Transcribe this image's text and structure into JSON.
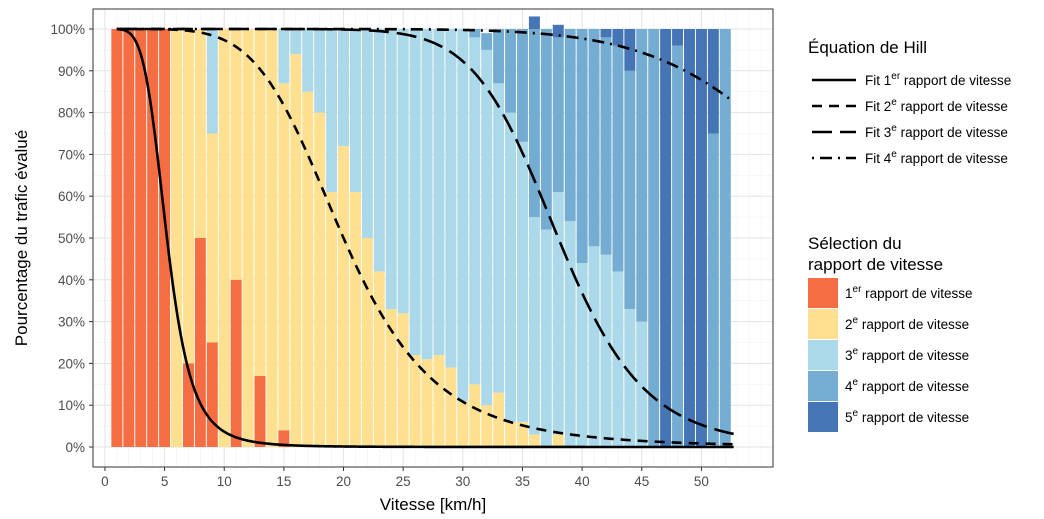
{
  "chart_data": {
    "type": "bar",
    "stacked": true,
    "xlabel": "Vitesse [km/h]",
    "ylabel": "Pourcentage du trafic évalué",
    "xlim": [
      -1,
      56
    ],
    "ylim": [
      0,
      100
    ],
    "x_ticks": [
      0,
      5,
      10,
      15,
      20,
      25,
      30,
      35,
      40,
      45,
      50
    ],
    "y_ticks": [
      "0%",
      "10%",
      "20%",
      "30%",
      "40%",
      "50%",
      "60%",
      "70%",
      "80%",
      "90%",
      "100%"
    ],
    "grid": true,
    "legend_position": "right",
    "colors": {
      "gear1": "#f46d43",
      "gear2": "#fee090",
      "gear3": "#abd9e9",
      "gear4": "#74add1",
      "gear5": "#4575b4"
    },
    "speeds": [
      1,
      2,
      3,
      4,
      5,
      6,
      7,
      8,
      9,
      10,
      11,
      12,
      13,
      14,
      15,
      16,
      17,
      18,
      19,
      20,
      21,
      22,
      23,
      24,
      25,
      26,
      27,
      28,
      29,
      30,
      31,
      32,
      33,
      34,
      35,
      36,
      37,
      38,
      39,
      40,
      41,
      42,
      43,
      44,
      45,
      46,
      47,
      48,
      49,
      50,
      51,
      52
    ],
    "series": [
      {
        "name": "1er rapport de vitesse",
        "key": "gear1",
        "values": [
          100,
          100,
          100,
          100,
          100,
          0,
          20,
          50,
          25,
          0,
          40,
          0,
          17,
          0,
          4,
          0,
          0,
          0,
          0,
          0,
          0,
          0,
          0,
          0,
          0,
          0,
          0,
          0,
          0,
          0,
          0,
          0,
          0,
          0,
          0,
          0,
          0,
          0,
          0,
          0,
          0,
          0,
          0,
          0,
          0,
          0,
          0,
          0,
          0,
          0,
          0,
          0
        ]
      },
      {
        "name": "2e rapport de vitesse",
        "key": "gear2",
        "values": [
          0,
          0,
          0,
          0,
          0,
          100,
          80,
          50,
          50,
          100,
          60,
          100,
          83,
          100,
          83,
          94,
          85,
          80,
          61,
          72,
          61,
          50,
          42,
          33,
          32,
          22,
          21,
          22,
          19,
          11,
          15,
          10,
          13,
          6,
          6,
          3,
          0,
          3,
          0,
          0,
          0,
          0,
          0,
          0,
          0,
          0,
          0,
          0,
          0,
          0,
          0,
          0
        ]
      },
      {
        "name": "3e rapport de vitesse",
        "key": "gear3",
        "values": [
          0,
          0,
          0,
          0,
          0,
          0,
          0,
          0,
          25,
          0,
          0,
          0,
          0,
          0,
          13,
          6,
          15,
          20,
          39,
          28,
          39,
          50,
          58,
          67,
          68,
          78,
          79,
          78,
          81,
          89,
          83,
          85,
          74,
          74,
          67,
          52,
          52,
          58,
          54,
          44,
          48,
          46,
          42,
          33,
          30,
          0,
          0,
          0,
          0,
          0,
          0,
          0
        ]
      },
      {
        "name": "4e rapport de vitesse",
        "key": "gear4",
        "values": [
          0,
          0,
          0,
          0,
          0,
          0,
          0,
          0,
          0,
          0,
          0,
          0,
          0,
          0,
          0,
          0,
          0,
          0,
          0,
          0,
          0,
          0,
          0,
          0,
          0,
          0,
          0,
          0,
          0,
          0,
          2,
          4,
          13,
          20,
          27,
          45,
          48,
          37,
          46,
          56,
          52,
          52,
          54,
          57,
          70,
          100,
          0,
          96,
          0,
          0,
          75,
          100
        ]
      },
      {
        "name": "5e rapport de vitesse",
        "key": "gear5",
        "values": [
          0,
          0,
          0,
          0,
          0,
          0,
          0,
          0,
          0,
          0,
          0,
          0,
          0,
          0,
          0,
          0,
          0,
          0,
          0,
          0,
          0,
          0,
          0,
          0,
          0,
          0,
          0,
          0,
          0,
          0,
          0,
          0,
          0,
          0,
          0,
          3,
          0,
          3,
          0,
          0,
          0,
          2,
          4,
          10,
          0,
          0,
          100,
          4,
          100,
          100,
          25,
          0
        ]
      }
    ],
    "fits": [
      {
        "name": "Fit 1er rapport de vitesse",
        "dash": "solid",
        "k": 5.2,
        "n": 5.0
      },
      {
        "name": "Fit 2e rapport de vitesse",
        "dash": "dashed",
        "k": 20.0,
        "n": 5.2
      },
      {
        "name": "Fit 3e rapport de vitesse",
        "dash": "longdash",
        "k": 38.0,
        "n": 10.5
      },
      {
        "name": "Fit 4e rapport de vitesse",
        "dash": "dotdash",
        "k": 64.0,
        "n": 8.0
      }
    ]
  },
  "legend_fits": {
    "title": "Équation de Hill",
    "items": [
      {
        "pre": "Fit 1",
        "sup": "er",
        "post": " rapport de vitesse"
      },
      {
        "pre": "Fit 2",
        "sup": "e",
        "post": " rapport de vitesse"
      },
      {
        "pre": "Fit 3",
        "sup": "e",
        "post": " rapport de vitesse"
      },
      {
        "pre": "Fit 4",
        "sup": "e",
        "post": " rapport de vitesse"
      }
    ]
  },
  "legend_gears": {
    "title_line1": "Sélection du",
    "title_line2": "rapport de vitesse",
    "items": [
      {
        "pre": "1",
        "sup": "er",
        "post": " rapport de vitesse"
      },
      {
        "pre": "2",
        "sup": "e",
        "post": " rapport de vitesse"
      },
      {
        "pre": "3",
        "sup": "e",
        "post": " rapport de vitesse"
      },
      {
        "pre": "4",
        "sup": "e",
        "post": " rapport de vitesse"
      },
      {
        "pre": "5",
        "sup": "e",
        "post": " rapport de vitesse"
      }
    ]
  }
}
